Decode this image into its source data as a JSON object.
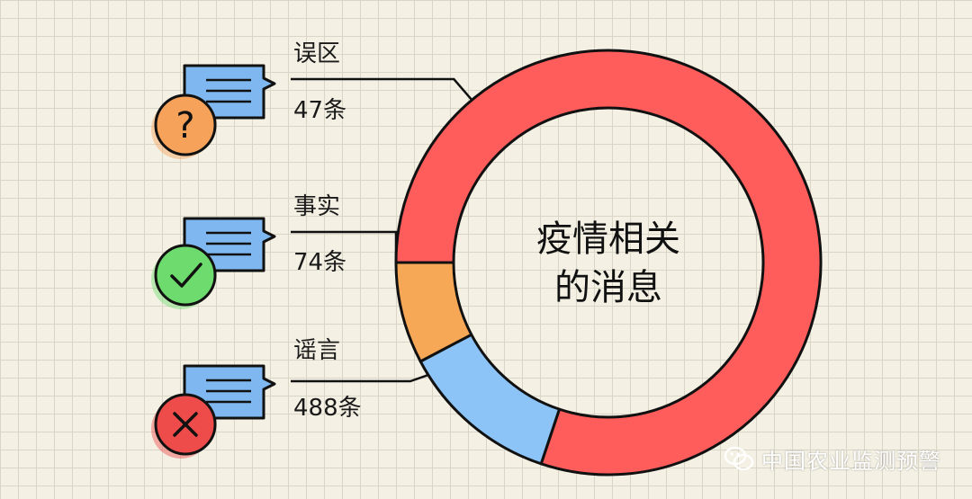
{
  "chart_data": {
    "type": "pie",
    "center_text": [
      "疫情相关",
      "的消息"
    ],
    "slices": [
      {
        "name": "谣言",
        "value": 488,
        "unit_label": "488条",
        "color": "#ff5c5c",
        "icon": "cross-icon",
        "icon_color": "#ee4b4b"
      },
      {
        "name": "事实",
        "value": 74,
        "unit_label": "74条",
        "color": "#8cc4f7",
        "icon": "check-icon",
        "icon_color": "#6edb6e"
      },
      {
        "name": "误区",
        "value": 47,
        "unit_label": "47条",
        "color": "#f7a857",
        "icon": "question-icon",
        "icon_color": "#f6a25a"
      }
    ]
  },
  "watermark": {
    "text": "中国农业监测预警",
    "icon": "wechat-icon"
  },
  "colors": {
    "background": "#f4f1e4",
    "grid": "#d9d6c8",
    "outline": "#111111",
    "bubble": "#7fb8f0"
  }
}
